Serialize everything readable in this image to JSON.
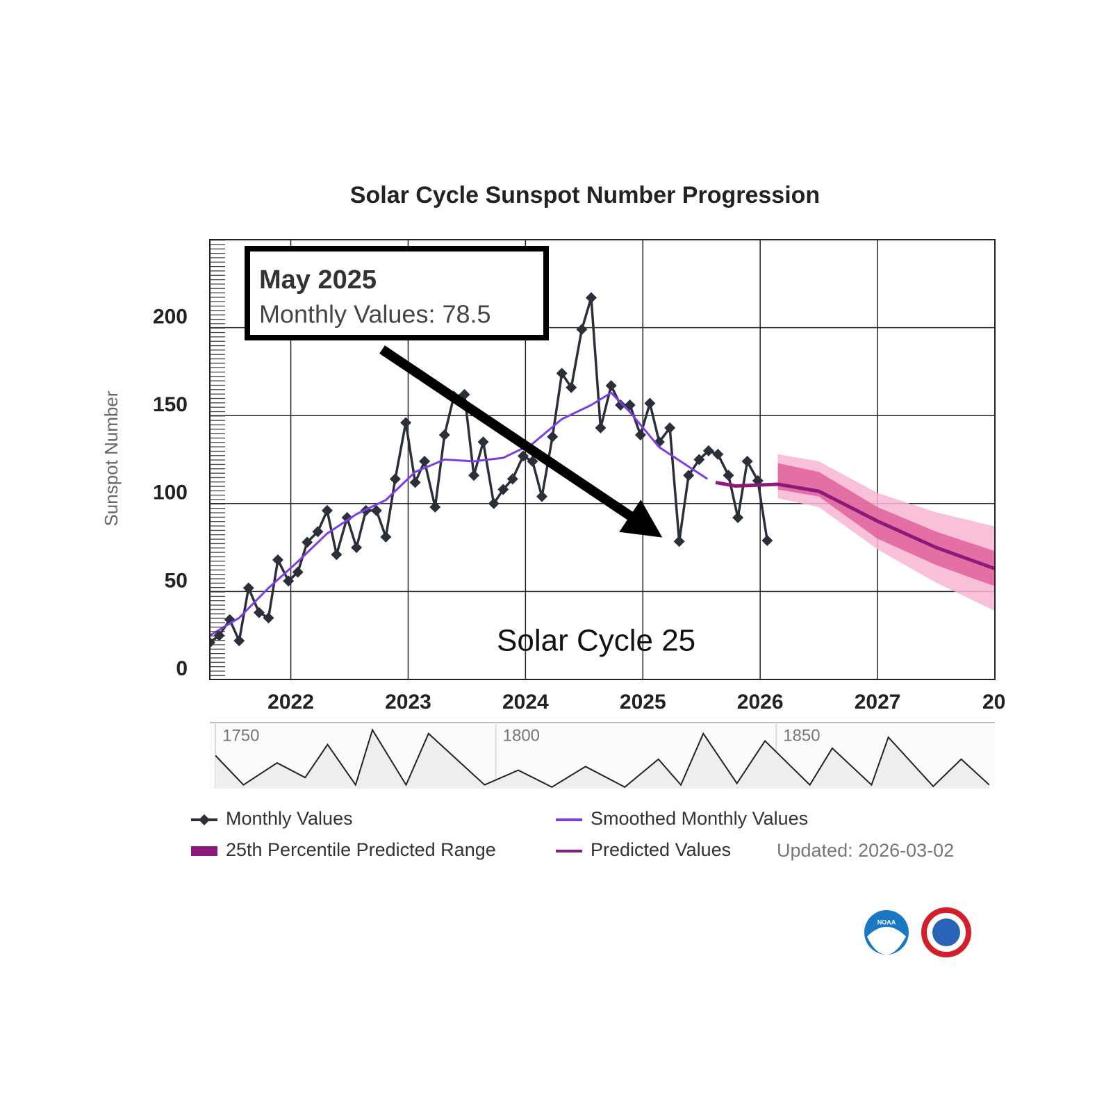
{
  "chart_data": {
    "type": "line",
    "title": "Solar Cycle Sunspot Number Progression",
    "y_label": "Sunspot Number",
    "xlim": [
      2021.31,
      2028.0
    ],
    "ylim": [
      0,
      250
    ],
    "xticks": [
      2022,
      2023,
      2024,
      2025,
      2026,
      2027,
      {
        "value": 2028,
        "label": "20"
      }
    ],
    "yticks": [
      0,
      50,
      100,
      150,
      200
    ],
    "grid": true,
    "series": [
      {
        "name": "Monthly Values",
        "color": "#2b2f3a",
        "marker": "diamond",
        "x": [
          2021.31,
          2021.39,
          2021.48,
          2021.56,
          2021.64,
          2021.73,
          2021.81,
          2021.89,
          2021.98,
          2022.06,
          2022.14,
          2022.23,
          2022.31,
          2022.39,
          2022.48,
          2022.56,
          2022.64,
          2022.73,
          2022.81,
          2022.89,
          2022.98,
          2023.06,
          2023.14,
          2023.23,
          2023.31,
          2023.39,
          2023.48,
          2023.56,
          2023.64,
          2023.73,
          2023.81,
          2023.89,
          2023.98,
          2024.06,
          2024.14,
          2024.23,
          2024.31,
          2024.39,
          2024.48,
          2024.56,
          2024.64,
          2024.73,
          2024.81,
          2024.89,
          2024.98,
          2025.06,
          2025.14,
          2025.23,
          2025.31,
          2025.39,
          2025.48,
          2025.56,
          2025.64,
          2025.73,
          2025.81,
          2025.89,
          2025.98,
          2026.06
        ],
        "values": [
          21,
          25,
          34,
          22,
          52,
          38,
          35,
          68,
          56,
          61,
          78,
          84,
          96,
          71,
          92,
          75,
          96,
          96,
          81,
          114,
          146,
          112,
          124,
          98,
          139,
          161,
          162,
          116,
          135,
          100,
          108,
          114,
          127,
          124,
          104,
          138,
          174,
          166,
          199,
          217,
          143,
          167,
          156,
          156,
          139,
          157,
          135,
          143,
          78.5,
          116,
          125,
          130,
          128,
          116,
          92,
          124,
          113,
          79
        ]
      },
      {
        "name": "Smoothed Monthly Values",
        "color": "#7b3fe4",
        "x": [
          2021.31,
          2021.56,
          2021.81,
          2022.06,
          2022.31,
          2022.56,
          2022.81,
          2023.06,
          2023.31,
          2023.56,
          2023.81,
          2024.06,
          2024.31,
          2024.56,
          2024.73,
          2024.89,
          2025.14,
          2025.39,
          2025.55
        ],
        "values": [
          25,
          35,
          52,
          67,
          83,
          94,
          102,
          118,
          125,
          124,
          126,
          134,
          148,
          156,
          163,
          152,
          132,
          121,
          114
        ]
      },
      {
        "name": "Predicted Values",
        "color": "#8b1a7a",
        "x": [
          2025.62,
          2025.79,
          2026.15,
          2026.5,
          2027.0,
          2027.5,
          2028.0
        ],
        "values": [
          112,
          110,
          111,
          107,
          90,
          75,
          63
        ]
      }
    ],
    "prediction_range": {
      "name": "25th Percentile Predicted Range",
      "color": "#8b1a7a",
      "x": [
        2026.15,
        2026.5,
        2027.0,
        2027.5,
        2028.0
      ],
      "bands": [
        {
          "color": "#f7b6d2",
          "upper": [
            128,
            124,
            106,
            95,
            87
          ],
          "lower": [
            103,
            98,
            74,
            55,
            39
          ]
        },
        {
          "color": "#e0609a",
          "upper": [
            123,
            118,
            98,
            84,
            73
          ],
          "lower": [
            108,
            104,
            80,
            65,
            53
          ]
        }
      ]
    },
    "annotation_box": {
      "title": "May 2025",
      "text": "Monthly Values: 78.5"
    },
    "annotation": "Solar Cycle 25",
    "updated": "Updated: 2026-03-02",
    "navigator": {
      "xlim": [
        1749,
        1889
      ],
      "ylim": [
        0,
        270
      ],
      "ticks": [
        1750,
        1800,
        1850
      ],
      "x": [
        1750,
        1755,
        1761,
        1766,
        1770,
        1775,
        1778,
        1784,
        1788,
        1798,
        1804,
        1810,
        1816,
        1823,
        1829,
        1833,
        1837,
        1843,
        1848,
        1856,
        1860,
        1867,
        1870,
        1878,
        1883,
        1888
      ],
      "values": [
        135,
        15,
        105,
        45,
        180,
        15,
        240,
        15,
        225,
        15,
        75,
        6,
        90,
        6,
        120,
        15,
        225,
        21,
        195,
        15,
        165,
        15,
        210,
        9,
        120,
        15
      ]
    },
    "logo": "NOAA"
  }
}
